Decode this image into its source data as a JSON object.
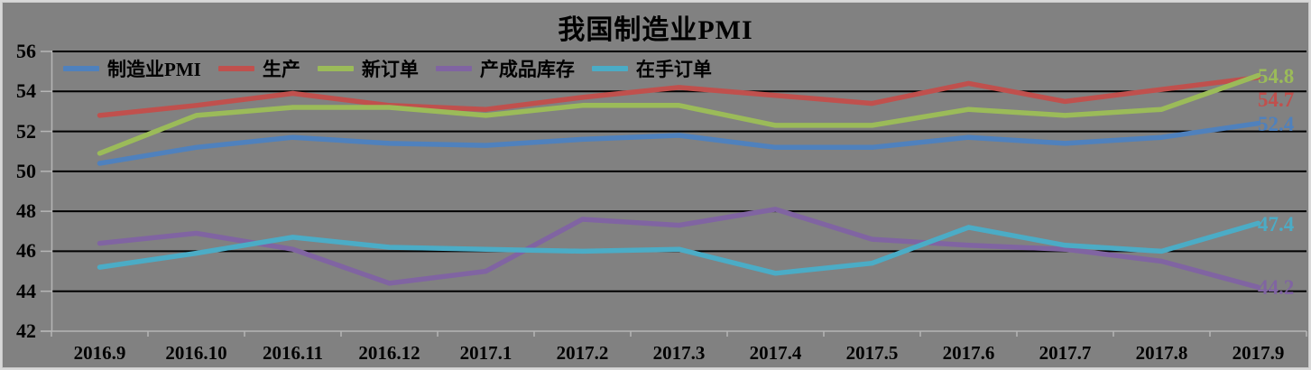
{
  "chart_data": {
    "type": "line",
    "title": "我国制造业PMI",
    "categories": [
      "2016.9",
      "2016.10",
      "2016.11",
      "2016.12",
      "2017.1",
      "2017.2",
      "2017.3",
      "2017.4",
      "2017.5",
      "2017.6",
      "2017.7",
      "2017.8",
      "2017.9"
    ],
    "y_ticks": [
      56,
      54,
      52,
      50,
      48,
      46,
      44,
      42
    ],
    "ylim": [
      42,
      56
    ],
    "grid": true,
    "legend_position": "top-left-inside",
    "series": [
      {
        "key": "manufacturing-pmi",
        "name": "制造业PMI",
        "color": "#4F81BD",
        "values": [
          50.4,
          51.2,
          51.7,
          51.4,
          51.3,
          51.6,
          51.8,
          51.2,
          51.2,
          51.7,
          51.4,
          51.7,
          52.4
        ],
        "end_label": "52.4"
      },
      {
        "key": "production",
        "name": "生产",
        "color": "#C0504D",
        "values": [
          52.8,
          53.3,
          53.9,
          53.3,
          53.1,
          53.7,
          54.2,
          53.8,
          53.4,
          54.4,
          53.5,
          54.1,
          54.7
        ],
        "end_label": "54.7"
      },
      {
        "key": "new-orders",
        "name": "新订单",
        "color": "#9BBB59",
        "values": [
          50.9,
          52.8,
          53.2,
          53.2,
          52.8,
          53.3,
          53.3,
          52.3,
          52.3,
          53.1,
          52.8,
          53.1,
          54.8
        ],
        "end_label": "54.8"
      },
      {
        "key": "finished-goods-inventory",
        "name": "产成品库存",
        "color": "#8064A2",
        "values": [
          46.4,
          46.9,
          46.1,
          44.4,
          45.0,
          47.6,
          47.3,
          48.1,
          46.6,
          46.3,
          46.1,
          45.5,
          44.2
        ],
        "end_label": "44.2"
      },
      {
        "key": "backlog-orders",
        "name": "在手订单",
        "color": "#4BACC6",
        "values": [
          45.2,
          45.9,
          46.7,
          46.2,
          46.1,
          46.0,
          46.1,
          44.9,
          45.4,
          47.2,
          46.3,
          46.0,
          47.4
        ],
        "end_label": "47.4"
      }
    ],
    "colors": {
      "background": "#818181",
      "frame": "#d8d8d8",
      "gridline": "#000000",
      "axis": "#b5b5b5",
      "text": "#000000"
    }
  }
}
